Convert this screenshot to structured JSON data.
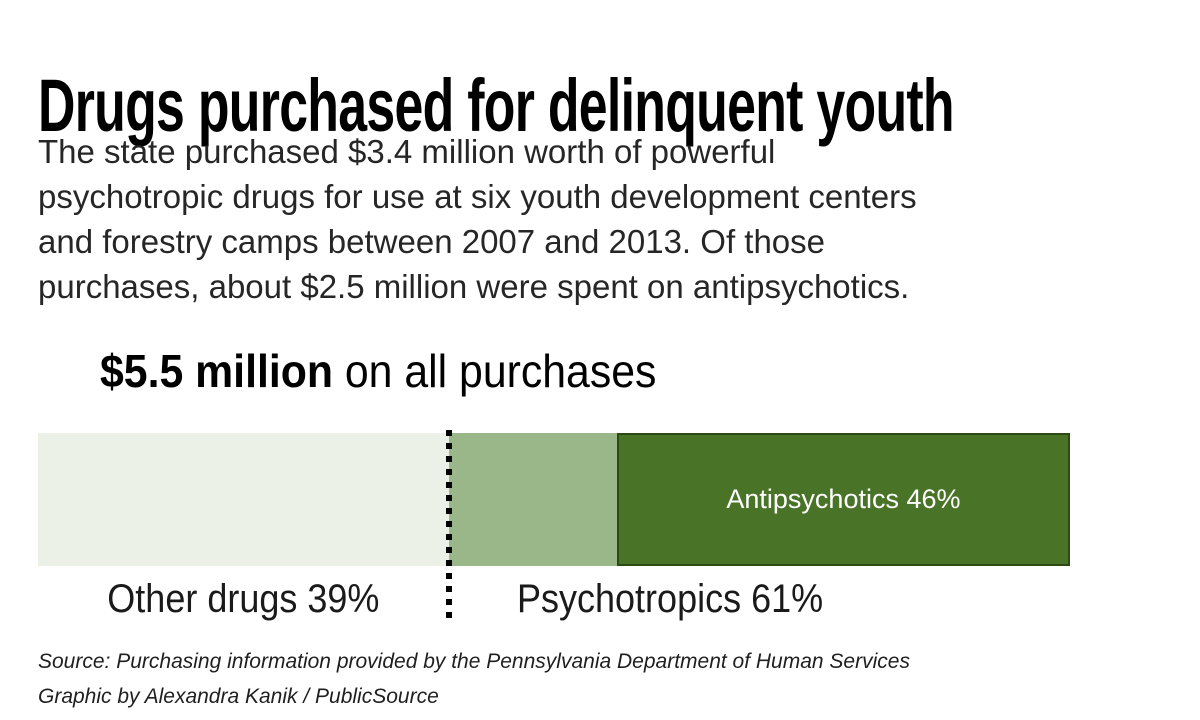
{
  "header": {
    "title": "Drugs purchased for delinquent youth",
    "description": "The state purchased $3.4 million worth of powerful\npsychotropic drugs for use at six youth development centers\nand forestry camps between 2007 and 2013. Of those\npurchases, about $2.5 million were spent on antipsychotics."
  },
  "chart_data": {
    "type": "bar",
    "stacked": true,
    "orientation": "horizontal",
    "title_bold": "$5.5 million",
    "title_rest": " on all purchases",
    "total_millions": 5.5,
    "segments": [
      {
        "name": "Other drugs",
        "percent": 39,
        "render_width_pct": 39.8,
        "color": "#ecf1e8",
        "bar_label": ""
      },
      {
        "name": "Psychotropics (other than antipsychotics)",
        "percent": 15,
        "render_width_pct": 16.3,
        "color": "#99b789",
        "bar_label": ""
      },
      {
        "name": "Antipsychotics",
        "percent": 46,
        "render_width_pct": 43.9,
        "color": "#497428",
        "border_color": "#2d4a15",
        "bar_label": "Antipsychotics 46%",
        "bar_label_color": "#ffffff"
      }
    ],
    "divider_at_pct": 39.8,
    "below_labels": [
      {
        "text": "Other drugs 39%",
        "percent": 39
      },
      {
        "text": "Psychotropics 61%",
        "percent": 61
      }
    ],
    "legend": "none",
    "grid": false
  },
  "footer": {
    "source_line": "Source: Purchasing information provided by the Pennsylvania Department of Human Services",
    "credit_line": "Graphic by Alexandra Kanik / PublicSource"
  }
}
